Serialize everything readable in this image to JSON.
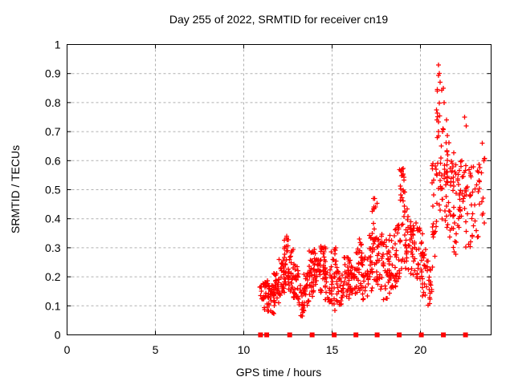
{
  "chart_data": {
    "type": "scatter",
    "title": "Day 255 of 2022, SRMTID for receiver cn19",
    "xlabel": "GPS time / hours",
    "ylabel": "SRMTID / TECUs",
    "xlim": [
      0,
      24
    ],
    "ylim": [
      0,
      1
    ],
    "xticks": [
      0,
      5,
      10,
      15,
      20
    ],
    "xtick_labels": [
      "0",
      "5",
      "10",
      "15",
      "20"
    ],
    "yticks": [
      0,
      0.1,
      0.2,
      0.3,
      0.4,
      0.5,
      0.6,
      0.7,
      0.8,
      0.9,
      1
    ],
    "ytick_labels": [
      "0",
      "0.1",
      "0.2",
      "0.3",
      "0.4",
      "0.5",
      "0.6",
      "0.7",
      "0.8",
      "0.9",
      "1"
    ],
    "grid": {
      "visible": true,
      "style": "dashed",
      "color": "#b0b0b0"
    },
    "legend": "none",
    "border_color": "#000000",
    "background_color": "#ffffff",
    "seed": 20220255,
    "series": [
      {
        "name": "srmtid-values",
        "marker": "plus",
        "color": "#ff0000",
        "marker_size": 7,
        "time_range": [
          10.9,
          23.7
        ],
        "clusters": [
          [
            10.9,
            11.15,
            0.12,
            0.18,
            12
          ],
          [
            11.1,
            11.45,
            0.08,
            0.2,
            30
          ],
          [
            11.4,
            11.75,
            0.07,
            0.17,
            25
          ],
          [
            11.7,
            12.0,
            0.1,
            0.22,
            30
          ],
          [
            11.95,
            12.3,
            0.13,
            0.26,
            30
          ],
          [
            12.25,
            12.55,
            0.17,
            0.34,
            28
          ],
          [
            12.5,
            12.8,
            0.15,
            0.3,
            25
          ],
          [
            12.75,
            13.1,
            0.12,
            0.25,
            25
          ],
          [
            13.05,
            13.45,
            0.06,
            0.17,
            25
          ],
          [
            13.4,
            13.75,
            0.1,
            0.24,
            25
          ],
          [
            13.7,
            14.05,
            0.13,
            0.3,
            28
          ],
          [
            14.0,
            14.4,
            0.14,
            0.26,
            28
          ],
          [
            14.35,
            14.65,
            0.15,
            0.32,
            24
          ],
          [
            14.6,
            15.0,
            0.11,
            0.24,
            26
          ],
          [
            14.95,
            15.3,
            0.08,
            0.3,
            26
          ],
          [
            15.25,
            15.65,
            0.1,
            0.22,
            26
          ],
          [
            15.6,
            16.0,
            0.12,
            0.27,
            28
          ],
          [
            15.95,
            16.35,
            0.13,
            0.26,
            28
          ],
          [
            16.3,
            16.7,
            0.14,
            0.32,
            28
          ],
          [
            16.65,
            17.05,
            0.12,
            0.3,
            26
          ],
          [
            17.0,
            17.3,
            0.15,
            0.35,
            22
          ],
          [
            17.25,
            17.6,
            0.18,
            0.47,
            26
          ],
          [
            17.55,
            17.9,
            0.15,
            0.35,
            24
          ],
          [
            17.85,
            18.25,
            0.12,
            0.33,
            28
          ],
          [
            18.2,
            18.6,
            0.15,
            0.35,
            26
          ],
          [
            18.55,
            18.85,
            0.18,
            0.4,
            22
          ],
          [
            18.8,
            19.15,
            0.22,
            0.58,
            28
          ],
          [
            19.1,
            19.5,
            0.2,
            0.45,
            28
          ],
          [
            19.45,
            19.85,
            0.2,
            0.4,
            28
          ],
          [
            19.8,
            20.15,
            0.15,
            0.38,
            24
          ],
          [
            20.1,
            20.45,
            0.12,
            0.3,
            20
          ],
          [
            20.4,
            20.7,
            0.1,
            0.25,
            16
          ],
          [
            20.65,
            20.95,
            0.25,
            0.6,
            20
          ],
          [
            20.9,
            21.25,
            0.4,
            0.9,
            30
          ],
          [
            21.2,
            21.55,
            0.38,
            0.78,
            28
          ],
          [
            21.5,
            21.9,
            0.33,
            0.68,
            28
          ],
          [
            21.85,
            22.25,
            0.27,
            0.6,
            26
          ],
          [
            22.2,
            22.6,
            0.33,
            0.62,
            24
          ],
          [
            22.55,
            22.95,
            0.3,
            0.58,
            20
          ],
          [
            22.9,
            23.35,
            0.33,
            0.58,
            16
          ],
          [
            23.3,
            23.7,
            0.38,
            0.62,
            12
          ]
        ],
        "peak_points": [
          [
            12.44,
            0.34
          ],
          [
            14.5,
            0.3
          ],
          [
            15.2,
            0.3
          ],
          [
            16.55,
            0.33
          ],
          [
            17.4,
            0.47
          ],
          [
            17.45,
            0.44
          ],
          [
            18.95,
            0.57
          ],
          [
            19.0,
            0.55
          ],
          [
            20.95,
            0.84
          ],
          [
            21.02,
            0.93
          ],
          [
            21.06,
            0.9
          ],
          [
            21.12,
            0.87
          ],
          [
            21.3,
            0.85
          ],
          [
            21.35,
            0.8
          ],
          [
            22.5,
            0.75
          ],
          [
            22.6,
            0.72
          ],
          [
            23.5,
            0.66
          ],
          [
            23.6,
            0.6
          ]
        ]
      },
      {
        "name": "zero-flags",
        "marker": "filled-square",
        "color": "#ff0000",
        "marker_size": 6,
        "points": [
          [
            10.95,
            0
          ],
          [
            11.3,
            0
          ],
          [
            12.6,
            0
          ],
          [
            13.87,
            0
          ],
          [
            15.12,
            0
          ],
          [
            16.35,
            0
          ],
          [
            17.55,
            0
          ],
          [
            18.8,
            0
          ],
          [
            20.05,
            0
          ],
          [
            21.3,
            0
          ],
          [
            22.55,
            0
          ]
        ]
      }
    ]
  }
}
